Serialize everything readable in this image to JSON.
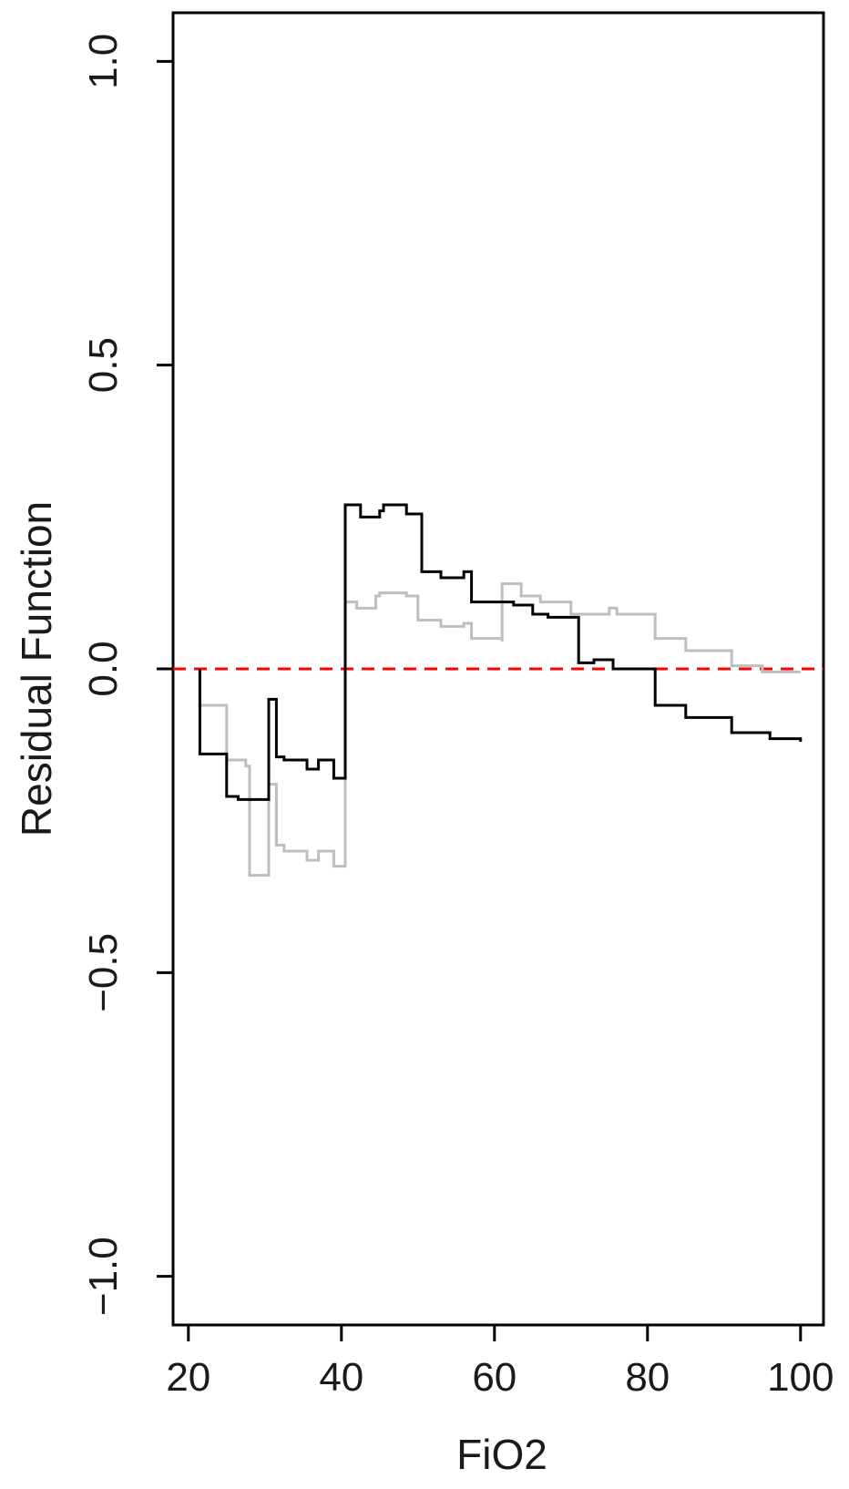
{
  "chart_data": {
    "type": "line",
    "title": "",
    "xlabel": "FiO2",
    "ylabel": "Residual Function",
    "xlim": [
      18,
      103
    ],
    "ylim": [
      -1.08,
      1.08
    ],
    "x_ticks": [
      20,
      40,
      60,
      80,
      100
    ],
    "x_tick_labels": [
      "20",
      "40",
      "60",
      "80",
      "100"
    ],
    "y_ticks": [
      -1.0,
      -0.5,
      0.0,
      0.5,
      1.0
    ],
    "y_tick_labels": [
      "−1.0",
      "−0.5",
      "0.0",
      "0.5",
      "1.0"
    ],
    "grid": false,
    "legend": "none",
    "reference_line": {
      "y": 0.0,
      "color": "#ff0000",
      "style": "dashed"
    },
    "series": [
      {
        "color": "#000000",
        "step": true,
        "x": [
          21.5,
          21.5,
          25,
          25,
          26.5,
          28,
          30.5,
          30.5,
          31.5,
          32.5,
          35.5,
          37,
          39,
          40,
          40.5,
          40.5,
          41,
          42.5,
          45,
          45.5,
          48.5,
          50,
          50.5,
          53,
          56,
          57,
          61.5,
          62.5,
          65,
          67,
          71,
          71,
          73,
          74.5,
          75.5,
          77.5,
          80.5,
          81,
          85,
          91,
          96,
          100
        ],
        "y": [
          0.0,
          -0.14,
          -0.14,
          -0.21,
          -0.215,
          -0.215,
          -0.215,
          -0.05,
          -0.145,
          -0.15,
          -0.165,
          -0.15,
          -0.18,
          -0.18,
          -0.18,
          0.27,
          0.27,
          0.25,
          0.26,
          0.27,
          0.255,
          0.255,
          0.16,
          0.15,
          0.16,
          0.11,
          0.11,
          0.105,
          0.09,
          0.085,
          0.085,
          0.01,
          0.015,
          0.015,
          0.0,
          0.0,
          0.0,
          -0.06,
          -0.08,
          -0.105,
          -0.115,
          -0.12
        ]
      },
      {
        "color": "#bebebe",
        "step": true,
        "x": [
          21.5,
          21.5,
          25,
          25,
          27.5,
          28,
          30.5,
          30.5,
          31.5,
          32.5,
          35.5,
          37,
          39,
          40.5,
          40.5,
          42,
          44.5,
          45,
          48.5,
          50,
          53,
          56,
          57,
          61,
          61,
          63.5,
          66,
          70,
          75,
          76,
          81,
          85,
          91,
          95,
          100
        ],
        "y": [
          0.0,
          -0.06,
          -0.06,
          -0.15,
          -0.16,
          -0.34,
          -0.34,
          -0.19,
          -0.29,
          -0.3,
          -0.315,
          -0.3,
          -0.325,
          -0.325,
          0.11,
          0.1,
          0.12,
          0.125,
          0.12,
          0.08,
          0.07,
          0.075,
          0.05,
          0.045,
          0.14,
          0.12,
          0.11,
          0.09,
          0.1,
          0.09,
          0.05,
          0.03,
          0.005,
          -0.005,
          -0.005
        ]
      }
    ]
  }
}
